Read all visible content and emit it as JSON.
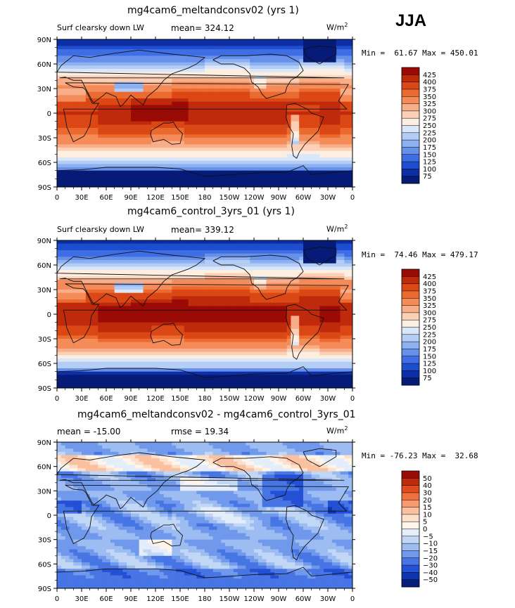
{
  "season": "JJA",
  "unit_label": "W/m",
  "unit_power": "2",
  "chart_data": [
    {
      "type": "heatmap",
      "title": "mg4cam6_meltandconsv02 (yrs 1)",
      "variable_label": "Surf clearsky down LW",
      "mean_label": "mean= 324.12",
      "minmax_label": "Min =  61.67 Max = 450.01",
      "min": 61.67,
      "max": 450.01,
      "mean": 324.12,
      "x_ticks": [
        "0",
        "30E",
        "60E",
        "90E",
        "120E",
        "150E",
        "180",
        "150W",
        "120W",
        "90W",
        "60W",
        "30W",
        "0"
      ],
      "y_ticks": [
        "90N",
        "60N",
        "30N",
        "0",
        "30S",
        "60S",
        "90S"
      ],
      "colorbar_levels": [
        "425",
        "400",
        "375",
        "350",
        "325",
        "300",
        "275",
        "250",
        "225",
        "200",
        "175",
        "150",
        "125",
        "100",
        "75"
      ],
      "colorbar_colors": [
        "#9b0b06",
        "#c02a0c",
        "#db4715",
        "#ea6a2f",
        "#f48b58",
        "#f8ae88",
        "#fcd0b6",
        "#fdeee2",
        "#d9e7f8",
        "#b4cdf5",
        "#8db0f0",
        "#6690ea",
        "#3f6ee4",
        "#1f4dcf",
        "#0d2fa6",
        "#061a78"
      ]
    },
    {
      "type": "heatmap",
      "title": "mg4cam6_control_3yrs_01 (yrs 1)",
      "variable_label": "Surf clearsky down LW",
      "mean_label": "mean= 339.12",
      "minmax_label": "Min =  74.46 Max = 479.17",
      "min": 74.46,
      "max": 479.17,
      "mean": 339.12,
      "x_ticks": [
        "0",
        "30E",
        "60E",
        "90E",
        "120E",
        "150E",
        "180",
        "150W",
        "120W",
        "90W",
        "60W",
        "30W",
        "0"
      ],
      "y_ticks": [
        "90N",
        "60N",
        "30N",
        "0",
        "30S",
        "60S",
        "90S"
      ],
      "colorbar_levels": [
        "425",
        "400",
        "375",
        "350",
        "325",
        "300",
        "275",
        "250",
        "225",
        "200",
        "175",
        "150",
        "125",
        "100",
        "75"
      ],
      "colorbar_colors": [
        "#9b0b06",
        "#c02a0c",
        "#db4715",
        "#ea6a2f",
        "#f48b58",
        "#f8ae88",
        "#fcd0b6",
        "#fdeee2",
        "#d9e7f8",
        "#b4cdf5",
        "#8db0f0",
        "#6690ea",
        "#3f6ee4",
        "#1f4dcf",
        "#0d2fa6",
        "#061a78"
      ]
    },
    {
      "type": "heatmap",
      "title": "mg4cam6_meltandconsv02 - mg4cam6_control_3yrs_01",
      "mean_label": "mean = -15.00",
      "rmse_label": "rmse =  19.34",
      "minmax_label": "Min = -76.23 Max =  32.68",
      "min": -76.23,
      "max": 32.68,
      "mean": -15.0,
      "rmse": 19.34,
      "x_ticks": [
        "0",
        "30E",
        "60E",
        "90E",
        "120E",
        "150E",
        "180",
        "150W",
        "120W",
        "90W",
        "60W",
        "30W",
        "0"
      ],
      "y_ticks": [
        "90N",
        "60N",
        "30N",
        "0",
        "30S",
        "60S",
        "90S"
      ],
      "colorbar_levels": [
        "50",
        "40",
        "30",
        "20",
        "15",
        "10",
        "5",
        "0",
        "−5",
        "−10",
        "−15",
        "−20",
        "−30",
        "−40",
        "−50"
      ],
      "colorbar_colors": [
        "#9b0b06",
        "#c02a0c",
        "#e04a1c",
        "#f07040",
        "#f89a70",
        "#fbc0a0",
        "#fde0cc",
        "#fdf4ea",
        "#e4eefa",
        "#c2d7f6",
        "#9dbdf2",
        "#7099ec",
        "#4775e4",
        "#2350d4",
        "#0f34b0",
        "#07207e"
      ]
    }
  ]
}
